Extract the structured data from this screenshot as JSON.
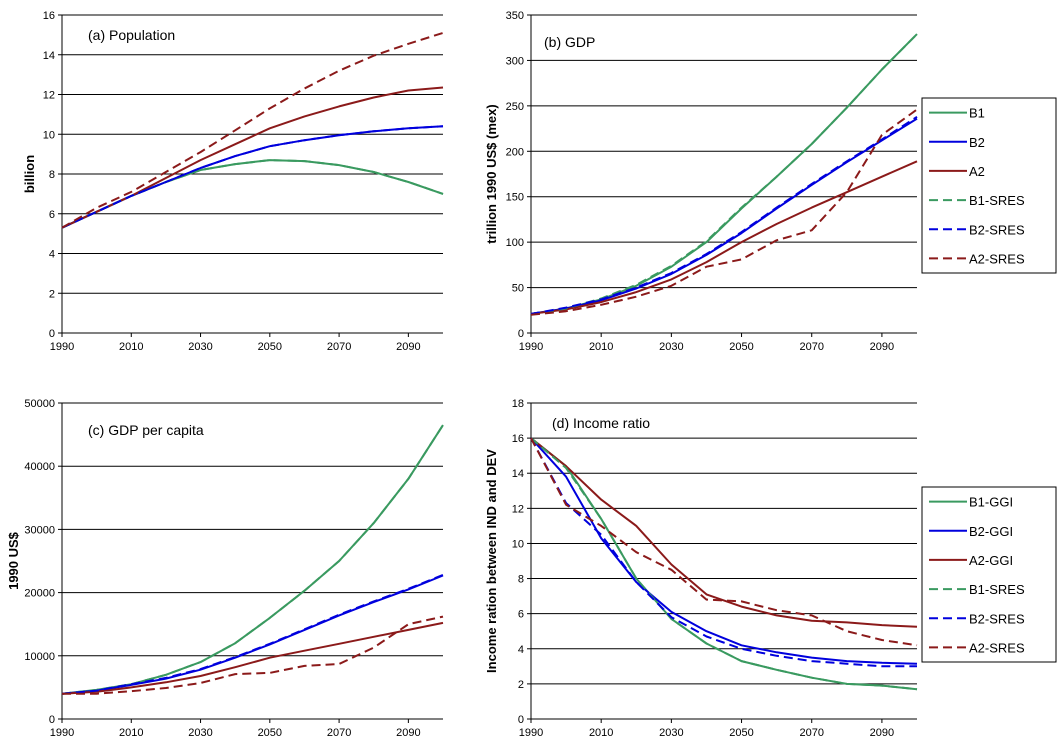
{
  "chart_data": [
    {
      "id": "a",
      "type": "line",
      "title": "(a) Population",
      "ylabel": "billion",
      "xlabel": "",
      "ylim": [
        0,
        16
      ],
      "yticks": [
        0,
        2,
        4,
        6,
        8,
        10,
        12,
        14,
        16
      ],
      "xlim": [
        1990,
        2100
      ],
      "xticks": [
        1990,
        2010,
        2030,
        2050,
        2070,
        2090
      ],
      "grid": true,
      "series": [
        {
          "name": "B1",
          "color": "#3a9a60",
          "dash": false,
          "x": [
            1990,
            2000,
            2010,
            2020,
            2030,
            2040,
            2050,
            2060,
            2070,
            2080,
            2090,
            2100
          ],
          "y": [
            5.3,
            6.1,
            6.9,
            7.6,
            8.2,
            8.5,
            8.7,
            8.65,
            8.45,
            8.1,
            7.6,
            7.0
          ]
        },
        {
          "name": "B2",
          "color": "#0000dd",
          "dash": false,
          "x": [
            1990,
            2000,
            2010,
            2020,
            2030,
            2040,
            2050,
            2060,
            2070,
            2080,
            2090,
            2100
          ],
          "y": [
            5.3,
            6.1,
            6.9,
            7.6,
            8.3,
            8.9,
            9.4,
            9.7,
            9.95,
            10.15,
            10.3,
            10.4
          ]
        },
        {
          "name": "A2",
          "color": "#8b1a1a",
          "dash": false,
          "x": [
            1990,
            2000,
            2010,
            2020,
            2030,
            2040,
            2050,
            2060,
            2070,
            2080,
            2090,
            2100
          ],
          "y": [
            5.3,
            6.1,
            6.9,
            7.8,
            8.7,
            9.5,
            10.3,
            10.9,
            11.4,
            11.85,
            12.2,
            12.35
          ]
        },
        {
          "name": "B1-SRES",
          "color": "#3a9a60",
          "dash": true,
          "x": [
            1990,
            2000,
            2010,
            2020,
            2030,
            2040,
            2050,
            2060,
            2070,
            2080,
            2090,
            2100
          ],
          "y": [
            5.3,
            6.1,
            6.9,
            7.6,
            8.2,
            8.5,
            8.7,
            8.65,
            8.45,
            8.1,
            7.6,
            7.0
          ]
        },
        {
          "name": "B2-SRES",
          "color": "#0000dd",
          "dash": true,
          "x": [
            1990,
            2000,
            2010,
            2020,
            2030,
            2040,
            2050,
            2060,
            2070,
            2080,
            2090,
            2100
          ],
          "y": [
            5.3,
            6.1,
            6.9,
            7.6,
            8.3,
            8.9,
            9.4,
            9.7,
            9.95,
            10.15,
            10.3,
            10.4
          ]
        },
        {
          "name": "A2-SRES",
          "color": "#8b1a1a",
          "dash": true,
          "x": [
            1990,
            2000,
            2010,
            2020,
            2030,
            2040,
            2050,
            2060,
            2070,
            2080,
            2090,
            2100
          ],
          "y": [
            5.3,
            6.3,
            7.1,
            8.1,
            9.1,
            10.2,
            11.3,
            12.3,
            13.2,
            13.95,
            14.55,
            15.1
          ]
        }
      ]
    },
    {
      "id": "b",
      "type": "line",
      "title": "(b) GDP",
      "ylabel": "trillion 1990 US$ (mex)",
      "xlabel": "",
      "ylim": [
        0,
        350
      ],
      "yticks": [
        0,
        50,
        100,
        150,
        200,
        250,
        300,
        350
      ],
      "xlim": [
        1990,
        2100
      ],
      "xticks": [
        1990,
        2010,
        2030,
        2050,
        2070,
        2090
      ],
      "grid": true,
      "legend": [
        "B1",
        "B2",
        "A2",
        "B1-SRES",
        "B2-SRES",
        "A2-SRES"
      ],
      "series": [
        {
          "name": "B1",
          "color": "#3a9a60",
          "dash": false,
          "x": [
            1990,
            2000,
            2010,
            2020,
            2030,
            2040,
            2050,
            2060,
            2070,
            2080,
            2090,
            2100
          ],
          "y": [
            21,
            27,
            37,
            52,
            73,
            100,
            137,
            172,
            208,
            248,
            290,
            329
          ]
        },
        {
          "name": "B2",
          "color": "#0000dd",
          "dash": false,
          "x": [
            1990,
            2000,
            2010,
            2020,
            2030,
            2040,
            2050,
            2060,
            2070,
            2080,
            2090,
            2100
          ],
          "y": [
            21,
            27,
            36,
            49,
            65,
            86,
            110,
            137,
            163,
            188,
            212,
            236
          ]
        },
        {
          "name": "A2",
          "color": "#8b1a1a",
          "dash": false,
          "x": [
            1990,
            2000,
            2010,
            2020,
            2030,
            2040,
            2050,
            2060,
            2070,
            2080,
            2090,
            2100
          ],
          "y": [
            21,
            26,
            34,
            45,
            59,
            78,
            100,
            120,
            138,
            155,
            172,
            189
          ]
        },
        {
          "name": "B1-SRES",
          "color": "#3a9a60",
          "dash": true,
          "x": [
            1990,
            2000,
            2010,
            2020,
            2030,
            2040,
            2050,
            2060,
            2070,
            2080,
            2090,
            2100
          ],
          "y": [
            21,
            27,
            38,
            53,
            74,
            101,
            138,
            172,
            208,
            248,
            290,
            329
          ]
        },
        {
          "name": "B2-SRES",
          "color": "#0000dd",
          "dash": true,
          "x": [
            1990,
            2000,
            2010,
            2020,
            2030,
            2040,
            2050,
            2060,
            2070,
            2080,
            2090,
            2100
          ],
          "y": [
            21,
            28,
            37,
            50,
            66,
            87,
            111,
            138,
            164,
            189,
            213,
            238
          ]
        },
        {
          "name": "A2-SRES",
          "color": "#8b1a1a",
          "dash": true,
          "x": [
            1990,
            2000,
            2010,
            2020,
            2030,
            2040,
            2050,
            2060,
            2070,
            2080,
            2090,
            2100
          ],
          "y": [
            20,
            24,
            31,
            40,
            52,
            73,
            81,
            102,
            113,
            155,
            218,
            246
          ]
        }
      ]
    },
    {
      "id": "c",
      "type": "line",
      "title": "(c) GDP per capita",
      "ylabel": "1990 US$",
      "xlabel": "",
      "ylim": [
        0,
        50000
      ],
      "yticks": [
        0,
        10000,
        20000,
        30000,
        40000,
        50000
      ],
      "xlim": [
        1990,
        2100
      ],
      "xticks": [
        1990,
        2010,
        2030,
        2050,
        2070,
        2090
      ],
      "grid": true,
      "series": [
        {
          "name": "B1",
          "color": "#3a9a60",
          "dash": false,
          "x": [
            1990,
            2000,
            2010,
            2020,
            2030,
            2040,
            2050,
            2060,
            2070,
            2080,
            2090,
            2100
          ],
          "y": [
            4000,
            4600,
            5500,
            7000,
            9000,
            12000,
            16000,
            20300,
            25000,
            31000,
            38000,
            46500
          ]
        },
        {
          "name": "B2",
          "color": "#0000dd",
          "dash": false,
          "x": [
            1990,
            2000,
            2010,
            2020,
            2030,
            2040,
            2050,
            2060,
            2070,
            2080,
            2090,
            2100
          ],
          "y": [
            4000,
            4500,
            5400,
            6400,
            7800,
            9700,
            11800,
            14100,
            16400,
            18500,
            20500,
            22700
          ]
        },
        {
          "name": "A2",
          "color": "#8b1a1a",
          "dash": false,
          "x": [
            1990,
            2000,
            2010,
            2020,
            2030,
            2040,
            2050,
            2060,
            2070,
            2080,
            2090,
            2100
          ],
          "y": [
            4000,
            4300,
            5000,
            5800,
            6800,
            8200,
            9700,
            10800,
            11900,
            13000,
            14100,
            15200
          ]
        },
        {
          "name": "B1-SRES",
          "color": "#3a9a60",
          "dash": true,
          "x": [
            1990,
            2000,
            2010,
            2020,
            2030,
            2040,
            2050,
            2060,
            2070,
            2080,
            2090,
            2100
          ],
          "y": [
            4000,
            4600,
            5500,
            7000,
            9000,
            12000,
            16000,
            20300,
            25000,
            31000,
            38000,
            46500
          ]
        },
        {
          "name": "B2-SRES",
          "color": "#0000dd",
          "dash": true,
          "x": [
            1990,
            2000,
            2010,
            2020,
            2030,
            2040,
            2050,
            2060,
            2070,
            2080,
            2090,
            2100
          ],
          "y": [
            4000,
            4500,
            5500,
            6500,
            7900,
            9800,
            11900,
            14200,
            16500,
            18600,
            20600,
            22800
          ]
        },
        {
          "name": "A2-SRES",
          "color": "#8b1a1a",
          "dash": true,
          "x": [
            1990,
            2000,
            2010,
            2020,
            2030,
            2040,
            2050,
            2060,
            2070,
            2080,
            2090,
            2100
          ],
          "y": [
            4000,
            4000,
            4400,
            4900,
            5700,
            7100,
            7300,
            8400,
            8700,
            11300,
            15000,
            16200
          ]
        }
      ]
    },
    {
      "id": "d",
      "type": "line",
      "title": "(d) Income ratio",
      "ylabel": "Income ration between IND and DEV",
      "xlabel": "",
      "ylim": [
        0,
        18
      ],
      "yticks": [
        0,
        2,
        4,
        6,
        8,
        10,
        12,
        14,
        16,
        18
      ],
      "xlim": [
        1990,
        2100
      ],
      "xticks": [
        1990,
        2010,
        2030,
        2050,
        2070,
        2090
      ],
      "grid": true,
      "legend": [
        "B1-GGI",
        "B2-GGI",
        "A2-GGI",
        "B1-SRES",
        "B2-SRES",
        "A2-SRES"
      ],
      "series": [
        {
          "name": "B1-GGI",
          "color": "#3a9a60",
          "dash": false,
          "x": [
            1990,
            2000,
            2010,
            2020,
            2030,
            2040,
            2050,
            2060,
            2070,
            2080,
            2090,
            2100
          ],
          "y": [
            16,
            14.4,
            11.4,
            8.0,
            5.7,
            4.3,
            3.3,
            2.8,
            2.35,
            2.0,
            1.9,
            1.7
          ]
        },
        {
          "name": "B2-GGI",
          "color": "#0000dd",
          "dash": false,
          "x": [
            1990,
            2000,
            2010,
            2020,
            2030,
            2040,
            2050,
            2060,
            2070,
            2080,
            2090,
            2100
          ],
          "y": [
            16,
            13.8,
            10.3,
            7.8,
            6.1,
            5.0,
            4.2,
            3.8,
            3.5,
            3.3,
            3.2,
            3.15
          ]
        },
        {
          "name": "A2-GGI",
          "color": "#8b1a1a",
          "dash": false,
          "x": [
            1990,
            2000,
            2010,
            2020,
            2030,
            2040,
            2050,
            2060,
            2070,
            2080,
            2090,
            2100
          ],
          "y": [
            16,
            14.4,
            12.5,
            11.0,
            8.8,
            7.1,
            6.4,
            5.9,
            5.6,
            5.5,
            5.35,
            5.25
          ]
        },
        {
          "name": "B1-SRES",
          "color": "#3a9a60",
          "dash": true,
          "x": [
            1990,
            2000,
            2010,
            2020,
            2030,
            2040,
            2050,
            2060,
            2070,
            2080,
            2090,
            2100
          ],
          "y": [
            16,
            14.3,
            11.4,
            8.0,
            5.7,
            4.3,
            3.3,
            2.8,
            2.35,
            2.0,
            1.9,
            1.7
          ]
        },
        {
          "name": "B2-SRES",
          "color": "#0000dd",
          "dash": true,
          "x": [
            1990,
            2000,
            2010,
            2020,
            2030,
            2040,
            2050,
            2060,
            2070,
            2080,
            2090,
            2100
          ],
          "y": [
            16,
            12.3,
            10.5,
            7.8,
            5.8,
            4.7,
            4.0,
            3.6,
            3.3,
            3.15,
            3.0,
            3.0
          ]
        },
        {
          "name": "A2-SRES",
          "color": "#8b1a1a",
          "dash": true,
          "x": [
            1990,
            2000,
            2010,
            2020,
            2030,
            2040,
            2050,
            2060,
            2070,
            2080,
            2090,
            2100
          ],
          "y": [
            16,
            12.2,
            11.0,
            9.5,
            8.5,
            6.8,
            6.7,
            6.2,
            5.9,
            5.0,
            4.5,
            4.2
          ]
        }
      ]
    }
  ]
}
